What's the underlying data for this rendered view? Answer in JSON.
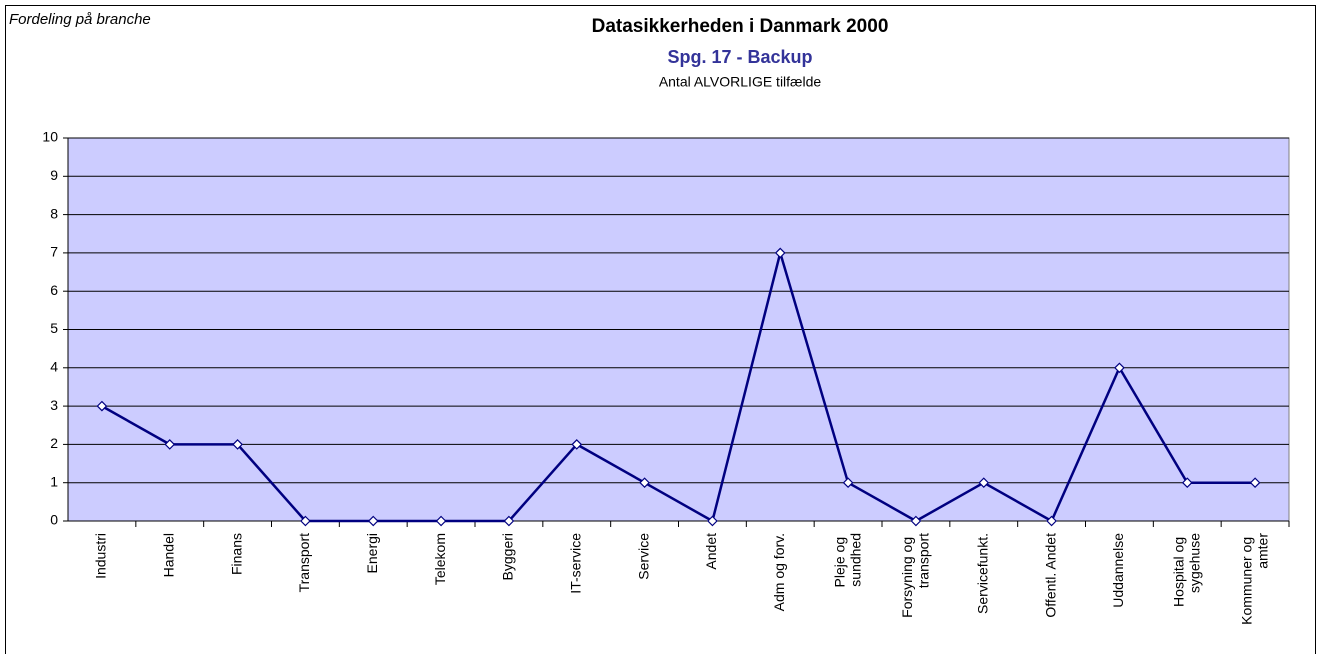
{
  "chart_data": {
    "type": "line",
    "corner_label": "Fordeling på branche",
    "title": "Datasikkerheden i Danmark 2000",
    "subtitle": "Spg. 17 - Backup",
    "y_label": "Antal ALVORLIGE tilfælde",
    "categories": [
      "Industri",
      "Handel",
      "Finans",
      "Transport",
      "Energi",
      "Telekom",
      "Byggeri",
      "IT-service",
      "Service",
      "Andet",
      "Adm og forv.",
      "Pleje og sundhed",
      "Forsyning og transport",
      "Servicefunkt.",
      "Offentl. Andet",
      "Uddannelse",
      "Hospital og sygehuse",
      "Kommuner og amter"
    ],
    "values": [
      3,
      2,
      2,
      0,
      0,
      0,
      0,
      2,
      1,
      0,
      7,
      1,
      0,
      1,
      0,
      4,
      1,
      1
    ],
    "color": "#000080",
    "plot_color": "#ccccff",
    "ylim": [
      0,
      10
    ],
    "yticks": [
      0,
      1,
      2,
      3,
      4,
      5,
      6,
      7,
      8,
      9,
      10
    ],
    "grid": true
  }
}
